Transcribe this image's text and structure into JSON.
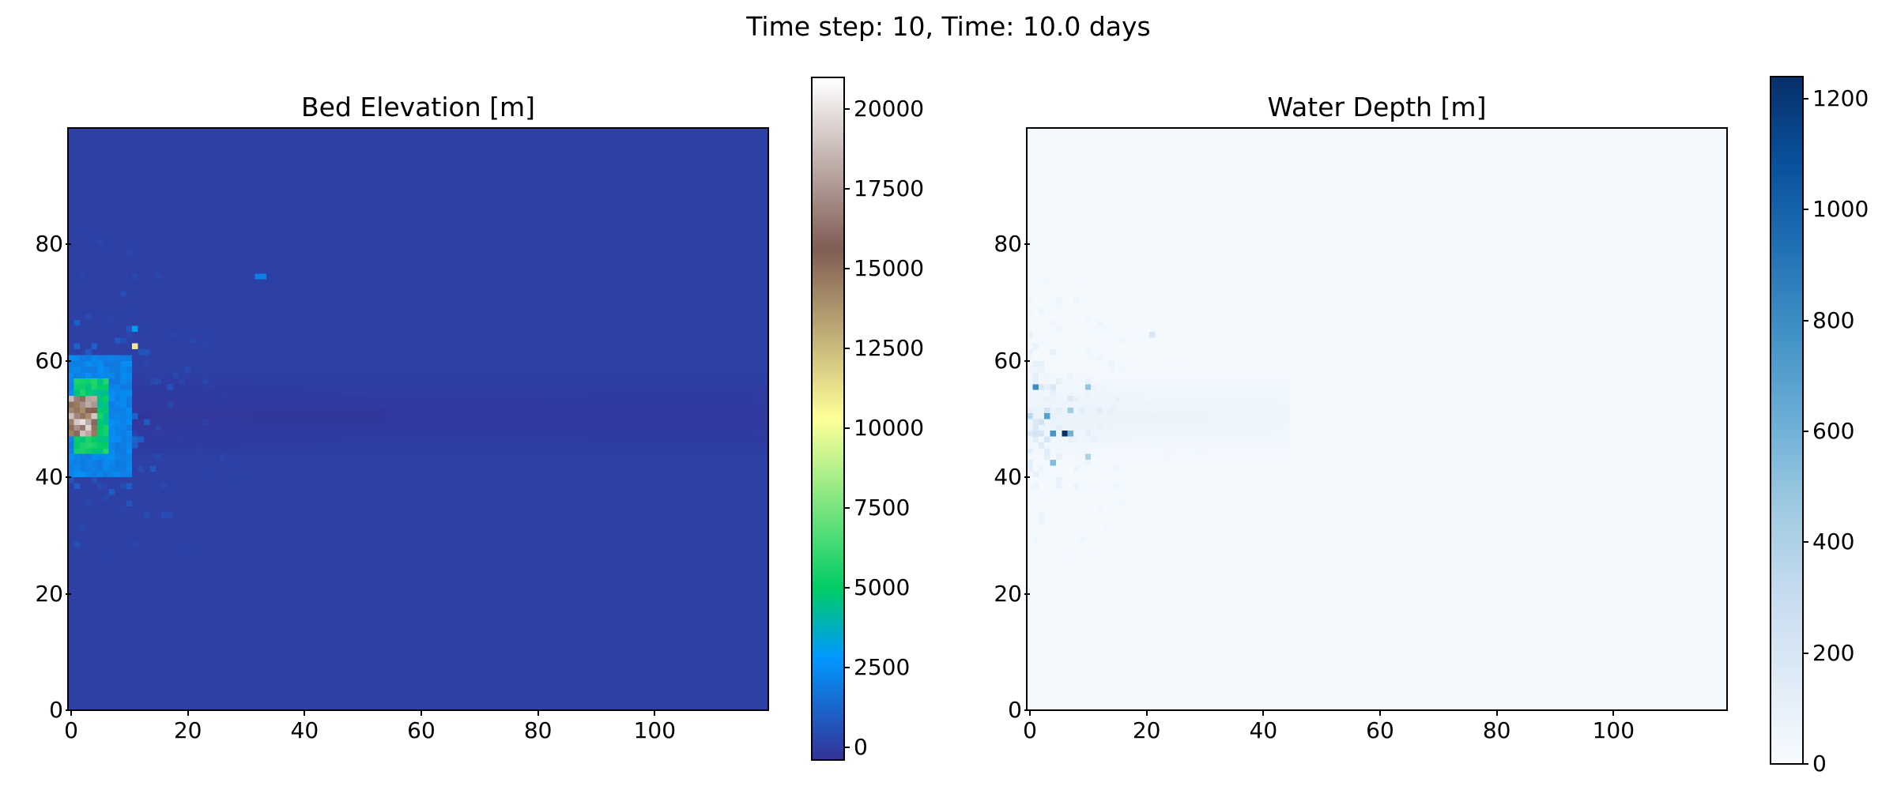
{
  "suptitle": "Time step: 10, Time: 10.0 days",
  "chart_data": [
    {
      "type": "heatmap",
      "title": "Bed Elevation [m]",
      "colormap": "terrain",
      "grid_shape": [
        100,
        120
      ],
      "xlim": [
        0,
        120
      ],
      "ylim": [
        0,
        100
      ],
      "xticks": [
        0,
        20,
        40,
        60,
        80,
        100
      ],
      "yticks": [
        0,
        20,
        40,
        60,
        80
      ],
      "colorbar": {
        "min": -400,
        "max": 21000,
        "ticks": [
          0,
          2500,
          5000,
          7500,
          10000,
          12500,
          15000,
          17500,
          20000
        ]
      },
      "background_value": 0,
      "features": [
        {
          "x": [
            0,
            4
          ],
          "y": [
            47,
            53
          ],
          "value": 20000
        },
        {
          "x": [
            1,
            6
          ],
          "y": [
            44,
            56
          ],
          "value": 6000
        },
        {
          "x": [
            0,
            10
          ],
          "y": [
            40,
            60
          ],
          "value": 2500
        },
        {
          "x": [
            11,
            11
          ],
          "y": [
            62,
            62
          ],
          "value": 11000
        },
        {
          "x": [
            11,
            11
          ],
          "y": [
            65,
            65
          ],
          "value": 3000
        },
        {
          "x": [
            32,
            33
          ],
          "y": [
            74,
            74
          ],
          "value": 2500
        }
      ],
      "plume": {
        "center_y": 50,
        "half_width": 8,
        "x_end": 120,
        "value": -300
      }
    },
    {
      "type": "heatmap",
      "title": "Water Depth [m]",
      "colormap": "Blues",
      "grid_shape": [
        100,
        120
      ],
      "xlim": [
        0,
        120
      ],
      "ylim": [
        0,
        100
      ],
      "xticks": [
        0,
        20,
        40,
        60,
        80,
        100
      ],
      "yticks": [
        0,
        20,
        40,
        60,
        80
      ],
      "colorbar": {
        "min": 0,
        "max": 1240,
        "ticks": [
          0,
          200,
          400,
          600,
          800,
          1000,
          1200
        ]
      },
      "background_value": 20,
      "features": [
        {
          "x": [
            1,
            1
          ],
          "y": [
            55,
            55
          ],
          "value": 800
        },
        {
          "x": [
            3,
            3
          ],
          "y": [
            50,
            50
          ],
          "value": 700
        },
        {
          "x": [
            4,
            4
          ],
          "y": [
            47,
            47
          ],
          "value": 750
        },
        {
          "x": [
            6,
            6
          ],
          "y": [
            47,
            47
          ],
          "value": 1240
        },
        {
          "x": [
            7,
            7
          ],
          "y": [
            47,
            47
          ],
          "value": 600
        },
        {
          "x": [
            4,
            4
          ],
          "y": [
            42,
            42
          ],
          "value": 550
        },
        {
          "x": [
            10,
            10
          ],
          "y": [
            55,
            55
          ],
          "value": 500
        },
        {
          "x": [
            10,
            10
          ],
          "y": [
            43,
            43
          ],
          "value": 400
        },
        {
          "x": [
            7,
            7
          ],
          "y": [
            51,
            51
          ],
          "value": 450
        },
        {
          "x": [
            21,
            21
          ],
          "y": [
            64,
            64
          ],
          "value": 200
        }
      ],
      "plume": {
        "center_y": 50,
        "half_width": 8,
        "x_end": 45,
        "value": 80
      }
    }
  ]
}
